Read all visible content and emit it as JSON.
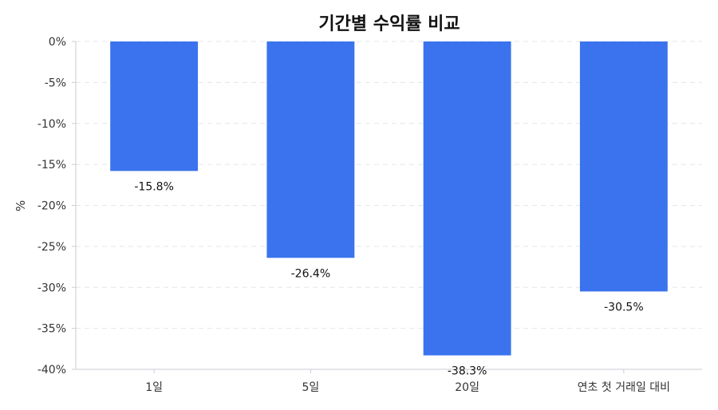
{
  "chart_data": {
    "type": "bar",
    "title": "기간별 수익률 비교",
    "xlabel": "",
    "ylabel": "%",
    "categories": [
      "1일",
      "5일",
      "20일",
      "연초 첫 거래일 대비"
    ],
    "values": [
      -15.8,
      -26.4,
      -38.3,
      -30.5
    ],
    "data_labels": [
      "-15.8%",
      "-26.4%",
      "-38.3%",
      "-30.5%"
    ],
    "ylim": [
      -40,
      0
    ],
    "yticks": [
      0,
      -5,
      -10,
      -15,
      -20,
      -25,
      -30,
      -35,
      -40
    ],
    "ytick_labels": [
      "0%",
      "-5%",
      "-10%",
      "-15%",
      "-20%",
      "-25%",
      "-30%",
      "-35%",
      "-40%"
    ],
    "grid": true,
    "legend": "none",
    "colors": {
      "bar": "#3b73ee"
    }
  }
}
